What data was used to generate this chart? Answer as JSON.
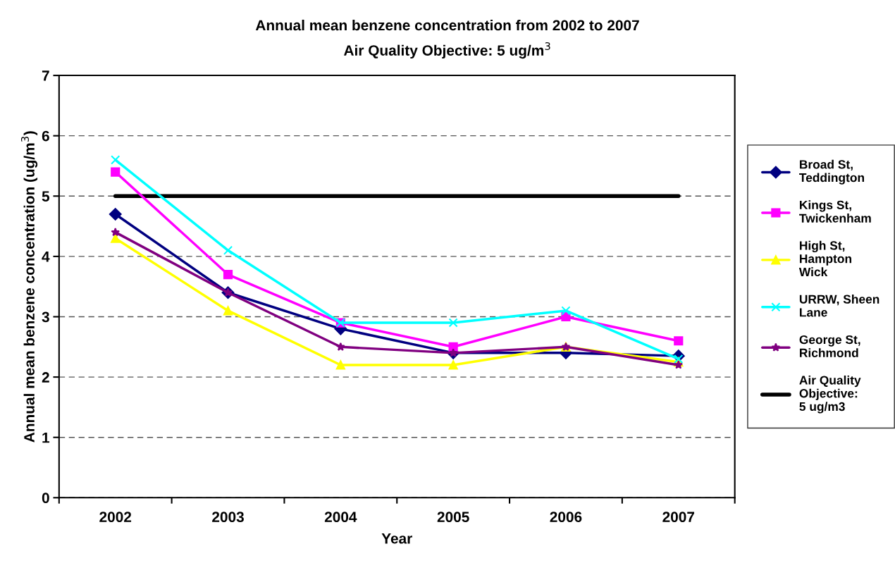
{
  "chart_data": {
    "type": "line",
    "title": "Annual mean benzene concentration from 2002 to 2007",
    "subtitle": "Air Quality Objective: 5 ug/m$^{3}$",
    "xlabel": "Year",
    "ylabel": "Annual mean benzene concentration (ug/m$^{3}$)",
    "categories": [
      "2002",
      "2003",
      "2004",
      "2005",
      "2006",
      "2007"
    ],
    "series": [
      {
        "name": "Broad St, Teddington",
        "color": "#000080",
        "marker": "diamond",
        "values": [
          4.7,
          3.4,
          2.8,
          2.4,
          2.4,
          2.35
        ]
      },
      {
        "name": "Kings St, Twickenham",
        "color": "#ff00ff",
        "marker": "square",
        "values": [
          5.4,
          3.7,
          2.9,
          2.5,
          3.0,
          2.6
        ]
      },
      {
        "name": "High St, Hampton Wick",
        "color": "#ffff00",
        "marker": "triangle",
        "values": [
          4.3,
          3.1,
          2.2,
          2.2,
          2.5,
          2.25
        ]
      },
      {
        "name": "URRW, Sheen Lane",
        "color": "#00ffff",
        "marker": "cross",
        "values": [
          5.6,
          4.1,
          2.9,
          2.9,
          3.1,
          2.3
        ]
      },
      {
        "name": "George St, Richmond",
        "color": "#800080",
        "marker": "star",
        "values": [
          4.4,
          3.4,
          2.5,
          2.4,
          2.5,
          2.2
        ]
      },
      {
        "name": "Air Quality Objective: 5 ug/m3",
        "color": "#000000",
        "marker": "none",
        "values": [
          5,
          5,
          5,
          5,
          5,
          5
        ]
      }
    ],
    "ylim": [
      0,
      7
    ],
    "yticks": [
      0,
      1,
      2,
      3,
      4,
      5,
      6,
      7
    ],
    "grid": "y",
    "legend": "right",
    "line_style": "solid"
  }
}
